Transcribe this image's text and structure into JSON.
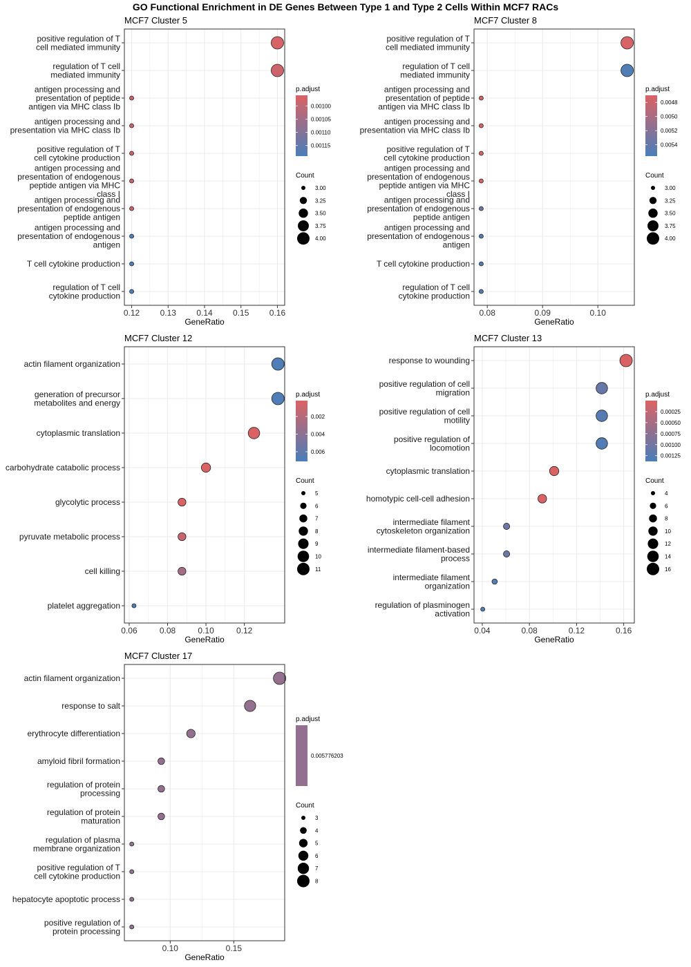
{
  "title": "GO Functional Enrichment in DE Genes Between Type 1 and Type 2 Cells Within MCF7 RACs",
  "colors": {
    "high_p": "#4A7EB9",
    "low_p": "#DB6264",
    "panel_border": "#333333",
    "grid": "#EBEBEB"
  },
  "chart_data": [
    {
      "type": "scatter",
      "title": "MCF7 Cluster 5",
      "xlabel": "GeneRatio",
      "xlim": [
        0.118,
        0.162
      ],
      "xticks": [
        0.12,
        0.13,
        0.14,
        0.15,
        0.16
      ],
      "xtick_labels": [
        "0.12",
        "0.13",
        "0.14",
        "0.15",
        "0.16"
      ],
      "terms": [
        {
          "label": [
            "positive regulation of T",
            "cell mediated immunity"
          ],
          "gene_ratio": 0.16,
          "count": 4,
          "p_adjust": 0.00097
        },
        {
          "label": [
            "regulation of T cell",
            "mediated immunity"
          ],
          "gene_ratio": 0.16,
          "count": 4,
          "p_adjust": 0.00098
        },
        {
          "label": [
            "antigen processing and",
            "presentation of peptide",
            "antigen via MHC class Ib"
          ],
          "gene_ratio": 0.12,
          "count": 3,
          "p_adjust": 0.00098
        },
        {
          "label": [
            "antigen processing and",
            "presentation via MHC class Ib"
          ],
          "gene_ratio": 0.12,
          "count": 3,
          "p_adjust": 0.00098
        },
        {
          "label": [
            "positive regulation of T",
            "cell cytokine production"
          ],
          "gene_ratio": 0.12,
          "count": 3,
          "p_adjust": 0.00098
        },
        {
          "label": [
            "antigen processing and",
            "presentation of endogenous",
            "peptide antigen via MHC",
            "class I"
          ],
          "gene_ratio": 0.12,
          "count": 3,
          "p_adjust": 0.00098
        },
        {
          "label": [
            "antigen processing and",
            "presentation of endogenous",
            "peptide antigen"
          ],
          "gene_ratio": 0.12,
          "count": 3,
          "p_adjust": 0.00098
        },
        {
          "label": [
            "antigen processing and",
            "presentation of endogenous",
            "antigen"
          ],
          "gene_ratio": 0.12,
          "count": 3,
          "p_adjust": 0.00118
        },
        {
          "label": [
            "T cell cytokine production"
          ],
          "gene_ratio": 0.12,
          "count": 3,
          "p_adjust": 0.00118
        },
        {
          "label": [
            "regulation of T cell",
            "cytokine production"
          ],
          "gene_ratio": 0.12,
          "count": 3,
          "p_adjust": 0.00118
        }
      ],
      "color_legend": {
        "title": "p.adjust",
        "min": 0.00096,
        "max": 0.00119,
        "ticks": [
          0.001,
          0.00105,
          0.0011,
          0.00115
        ],
        "tick_labels": [
          "0.00100",
          "0.00105",
          "0.00110",
          "0.00115"
        ]
      },
      "size_legend": {
        "title": "Count",
        "min": 3,
        "max": 4,
        "values": [
          3,
          3.25,
          3.5,
          3.75,
          4
        ],
        "labels": [
          "3.00",
          "3.25",
          "3.50",
          "3.75",
          "4.00"
        ]
      }
    },
    {
      "type": "scatter",
      "title": "MCF7 Cluster 8",
      "xlabel": "GeneRatio",
      "xlim": [
        0.0776,
        0.1066
      ],
      "xticks": [
        0.08,
        0.09,
        0.1
      ],
      "xtick_labels": [
        "0.08",
        "0.09",
        "0.10"
      ],
      "terms": [
        {
          "label": [
            "positive regulation of T",
            "cell mediated immunity"
          ],
          "gene_ratio": 0.1053,
          "count": 4,
          "p_adjust": 0.00473
        },
        {
          "label": [
            "regulation of T cell",
            "mediated immunity"
          ],
          "gene_ratio": 0.1053,
          "count": 4,
          "p_adjust": 0.00553
        },
        {
          "label": [
            "antigen processing and",
            "presentation of peptide",
            "antigen via MHC class Ib"
          ],
          "gene_ratio": 0.0789,
          "count": 3,
          "p_adjust": 0.00473
        },
        {
          "label": [
            "antigen processing and",
            "presentation via MHC class Ib"
          ],
          "gene_ratio": 0.0789,
          "count": 3,
          "p_adjust": 0.00473
        },
        {
          "label": [
            "positive regulation of T",
            "cell cytokine production"
          ],
          "gene_ratio": 0.0789,
          "count": 3,
          "p_adjust": 0.00473
        },
        {
          "label": [
            "antigen processing and",
            "presentation of endogenous",
            "peptide antigen via MHC",
            "class I"
          ],
          "gene_ratio": 0.0789,
          "count": 3,
          "p_adjust": 0.00473
        },
        {
          "label": [
            "antigen processing and",
            "presentation of endogenous",
            "peptide antigen"
          ],
          "gene_ratio": 0.0789,
          "count": 3,
          "p_adjust": 0.00535
        },
        {
          "label": [
            "antigen processing and",
            "presentation of endogenous",
            "antigen"
          ],
          "gene_ratio": 0.0789,
          "count": 3,
          "p_adjust": 0.00553
        },
        {
          "label": [
            "T cell cytokine production"
          ],
          "gene_ratio": 0.0789,
          "count": 3,
          "p_adjust": 0.00553
        },
        {
          "label": [
            "regulation of T cell",
            "cytokine production"
          ],
          "gene_ratio": 0.0789,
          "count": 3,
          "p_adjust": 0.00553
        }
      ],
      "color_legend": {
        "title": "p.adjust",
        "min": 0.0047,
        "max": 0.00556,
        "ticks": [
          0.0048,
          0.005,
          0.0052,
          0.0054
        ],
        "tick_labels": [
          "0.0048",
          "0.0050",
          "0.0052",
          "0.0054"
        ]
      },
      "size_legend": {
        "title": "Count",
        "min": 3,
        "max": 4,
        "values": [
          3,
          3.25,
          3.5,
          3.75,
          4
        ],
        "labels": [
          "3.00",
          "3.25",
          "3.50",
          "3.75",
          "4.00"
        ]
      }
    },
    {
      "type": "scatter",
      "title": "MCF7 Cluster 12",
      "xlabel": "GeneRatio",
      "xlim": [
        0.0575,
        0.141
      ],
      "xticks": [
        0.06,
        0.08,
        0.1,
        0.12
      ],
      "xtick_labels": [
        "0.06",
        "0.08",
        "0.10",
        "0.12"
      ],
      "terms": [
        {
          "label": [
            "actin filament organization"
          ],
          "gene_ratio": 0.1375,
          "count": 11,
          "p_adjust": 0.0069
        },
        {
          "label": [
            "generation of precursor",
            "metabolites and energy"
          ],
          "gene_ratio": 0.1375,
          "count": 11,
          "p_adjust": 0.0069
        },
        {
          "label": [
            "cytoplasmic translation"
          ],
          "gene_ratio": 0.125,
          "count": 10,
          "p_adjust": 0.0003
        },
        {
          "label": [
            "carbohydrate catabolic process"
          ],
          "gene_ratio": 0.1,
          "count": 8,
          "p_adjust": 0.0003
        },
        {
          "label": [
            "glycolytic process"
          ],
          "gene_ratio": 0.0875,
          "count": 7,
          "p_adjust": 0.0003
        },
        {
          "label": [
            "pyruvate metabolic process"
          ],
          "gene_ratio": 0.0875,
          "count": 7,
          "p_adjust": 0.0012
        },
        {
          "label": [
            "cell killing"
          ],
          "gene_ratio": 0.0875,
          "count": 7,
          "p_adjust": 0.0029
        },
        {
          "label": [
            "platelet aggregation"
          ],
          "gene_ratio": 0.0625,
          "count": 5,
          "p_adjust": 0.0069
        }
      ],
      "color_legend": {
        "title": "p.adjust",
        "min": 0.0002,
        "max": 0.0071,
        "ticks": [
          0.002,
          0.004,
          0.006
        ],
        "tick_labels": [
          "0.002",
          "0.004",
          "0.006"
        ]
      },
      "size_legend": {
        "title": "Count",
        "min": 5,
        "max": 11,
        "values": [
          5,
          6,
          7,
          8,
          9,
          10,
          11
        ],
        "labels": [
          "5",
          "6",
          "7",
          "8",
          "9",
          "10",
          "11"
        ]
      }
    },
    {
      "type": "scatter",
      "title": "MCF7 Cluster 13",
      "xlabel": "GeneRatio",
      "xlim": [
        0.033,
        0.169
      ],
      "xticks": [
        0.04,
        0.08,
        0.12,
        0.16
      ],
      "xtick_labels": [
        "0.04",
        "0.08",
        "0.12",
        "0.16"
      ],
      "terms": [
        {
          "label": [
            "response to wounding"
          ],
          "gene_ratio": 0.162,
          "count": 16,
          "p_adjust": 2e-05
        },
        {
          "label": [
            "positive regulation of cell",
            "migration"
          ],
          "gene_ratio": 0.1414,
          "count": 14,
          "p_adjust": 0.0011
        },
        {
          "label": [
            "positive regulation of cell",
            "motility"
          ],
          "gene_ratio": 0.1414,
          "count": 14,
          "p_adjust": 0.00125
        },
        {
          "label": [
            "positive regulation of",
            "locomotion"
          ],
          "gene_ratio": 0.1414,
          "count": 14,
          "p_adjust": 0.0013
        },
        {
          "label": [
            "cytoplasmic translation"
          ],
          "gene_ratio": 0.101,
          "count": 10,
          "p_adjust": 2e-05
        },
        {
          "label": [
            "homotypic cell-cell adhesion"
          ],
          "gene_ratio": 0.0909,
          "count": 9,
          "p_adjust": 2e-05
        },
        {
          "label": [
            "intermediate filament",
            "cytoskeleton organization"
          ],
          "gene_ratio": 0.0606,
          "count": 6,
          "p_adjust": 0.00105
        },
        {
          "label": [
            "intermediate filament-based",
            "process"
          ],
          "gene_ratio": 0.0606,
          "count": 6,
          "p_adjust": 0.00105
        },
        {
          "label": [
            "intermediate filament",
            "organization"
          ],
          "gene_ratio": 0.0505,
          "count": 5,
          "p_adjust": 0.00125
        },
        {
          "label": [
            "regulation of plasminogen",
            "activation"
          ],
          "gene_ratio": 0.0404,
          "count": 4,
          "p_adjust": 0.0013
        }
      ],
      "color_legend": {
        "title": "p.adjust",
        "min": 0.0,
        "max": 0.00138,
        "ticks": [
          0.00025,
          0.0005,
          0.00075,
          0.001,
          0.00125
        ],
        "tick_labels": [
          "0.00025",
          "0.00050",
          "0.00075",
          "0.00100",
          "0.00125"
        ]
      },
      "size_legend": {
        "title": "Count",
        "min": 4,
        "max": 16,
        "values": [
          4,
          6,
          8,
          10,
          12,
          14,
          16
        ],
        "labels": [
          "4",
          "6",
          "8",
          "10",
          "12",
          "14",
          "16"
        ]
      }
    },
    {
      "type": "scatter",
      "title": "MCF7 Cluster 17",
      "xlabel": "GeneRatio",
      "xlim": [
        0.064,
        0.19
      ],
      "xticks": [
        0.1,
        0.15
      ],
      "xtick_labels": [
        "0.10",
        "0.15"
      ],
      "terms": [
        {
          "label": [
            "actin filament organization"
          ],
          "gene_ratio": 0.186,
          "count": 8,
          "p_adjust": 0.005776203
        },
        {
          "label": [
            "response to salt"
          ],
          "gene_ratio": 0.1628,
          "count": 7,
          "p_adjust": 0.005776203
        },
        {
          "label": [
            "erythrocyte differentiation"
          ],
          "gene_ratio": 0.1163,
          "count": 5,
          "p_adjust": 0.005776203
        },
        {
          "label": [
            "amyloid fibril formation"
          ],
          "gene_ratio": 0.093,
          "count": 4,
          "p_adjust": 0.005776203
        },
        {
          "label": [
            "regulation of protein",
            "processing"
          ],
          "gene_ratio": 0.093,
          "count": 4,
          "p_adjust": 0.005776203
        },
        {
          "label": [
            "regulation of protein",
            "maturation"
          ],
          "gene_ratio": 0.093,
          "count": 4,
          "p_adjust": 0.005776203
        },
        {
          "label": [
            "regulation of plasma",
            "membrane organization"
          ],
          "gene_ratio": 0.0698,
          "count": 3,
          "p_adjust": 0.005776203
        },
        {
          "label": [
            "positive regulation of T",
            "cell cytokine production"
          ],
          "gene_ratio": 0.0698,
          "count": 3,
          "p_adjust": 0.005776203
        },
        {
          "label": [
            "hepatocyte apoptotic process"
          ],
          "gene_ratio": 0.0698,
          "count": 3,
          "p_adjust": 0.005776203
        },
        {
          "label": [
            "positive regulation of",
            "protein processing"
          ],
          "gene_ratio": 0.0698,
          "count": 3,
          "p_adjust": 0.005776203
        }
      ],
      "color_legend": {
        "title": "p.adjust",
        "single": true,
        "value": 0.005776203,
        "tick_labels": [
          "0.005776203"
        ]
      },
      "size_legend": {
        "title": "Count",
        "min": 3,
        "max": 8,
        "values": [
          3,
          4,
          5,
          6,
          7,
          8
        ],
        "labels": [
          "3",
          "4",
          "5",
          "6",
          "7",
          "8"
        ]
      }
    }
  ]
}
